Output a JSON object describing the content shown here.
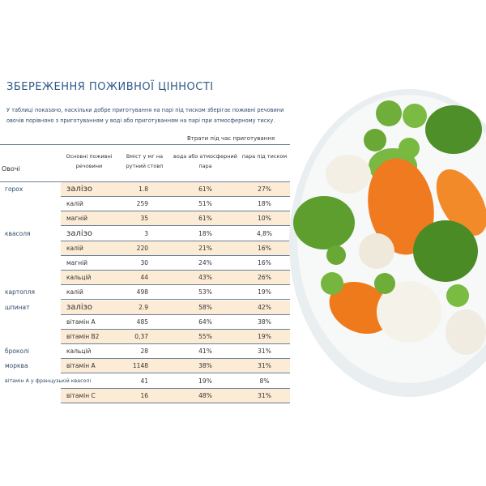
{
  "title": "ЗБЕРЕЖЕННЯ ПОЖИВНОЇ ЦІННОСТІ",
  "intro": "У таблиці показано, наскільки добре приготування на парі під тиском зберігає поживні речовини овочів порівняно з приготуванням у воді або приготуванням на парі при атмосферному тиску.",
  "table": {
    "group_header": "Втрати під час приготування",
    "headers": [
      "Овочі",
      "Основні поживні речовини",
      "Вміст у мг на рутний стовп",
      "вода або атмосферний пара",
      "пара під тиском"
    ],
    "rows": [
      {
        "vegetable": "горох",
        "nutrient": "залізо",
        "content": "1.8",
        "water": "61%",
        "steam": "27%"
      },
      {
        "nutrient": "калій",
        "content": "259",
        "water": "51%",
        "steam": "18%"
      },
      {
        "nutrient": "магній",
        "content": "35",
        "water": "61%",
        "steam": "10%"
      },
      {
        "vegetable": "квасоля",
        "nutrient": "залізо",
        "content": "3",
        "water": "18%",
        "steam": "4,8%"
      },
      {
        "nutrient": "калій",
        "content": "220",
        "water": "21%",
        "steam": "16%"
      },
      {
        "nutrient": "магній",
        "content": "30",
        "water": "24%",
        "steam": "16%"
      },
      {
        "nutrient": "кальцій",
        "content": "44",
        "water": "43%",
        "steam": "26%"
      },
      {
        "vegetable": "картопля",
        "nutrient": "калій",
        "content": "498",
        "water": "53%",
        "steam": "19%"
      },
      {
        "vegetable": "шпинат",
        "nutrient": "залізо",
        "content": "2.9",
        "water": "58%",
        "steam": "42%"
      },
      {
        "nutrient": "вітамін А",
        "content": "485",
        "water": "64%",
        "steam": "38%"
      },
      {
        "nutrient": "вітамін В2",
        "content": "0,37",
        "water": "55%",
        "steam": "19%"
      },
      {
        "vegetable": "броколі",
        "nutrient": "кальцій",
        "content": "28",
        "water": "41%",
        "steam": "31%"
      },
      {
        "vegetable": "морква",
        "nutrient": "вітамін А",
        "content": "1148",
        "water": "38%",
        "steam": "31%"
      },
      {
        "vegetable": "вітамін А у французькій квасолі",
        "content": "41",
        "water": "19%",
        "steam": "8%"
      },
      {
        "nutrient": "вітамін С",
        "content": "16",
        "water": "48%",
        "steam": "31%"
      }
    ]
  }
}
